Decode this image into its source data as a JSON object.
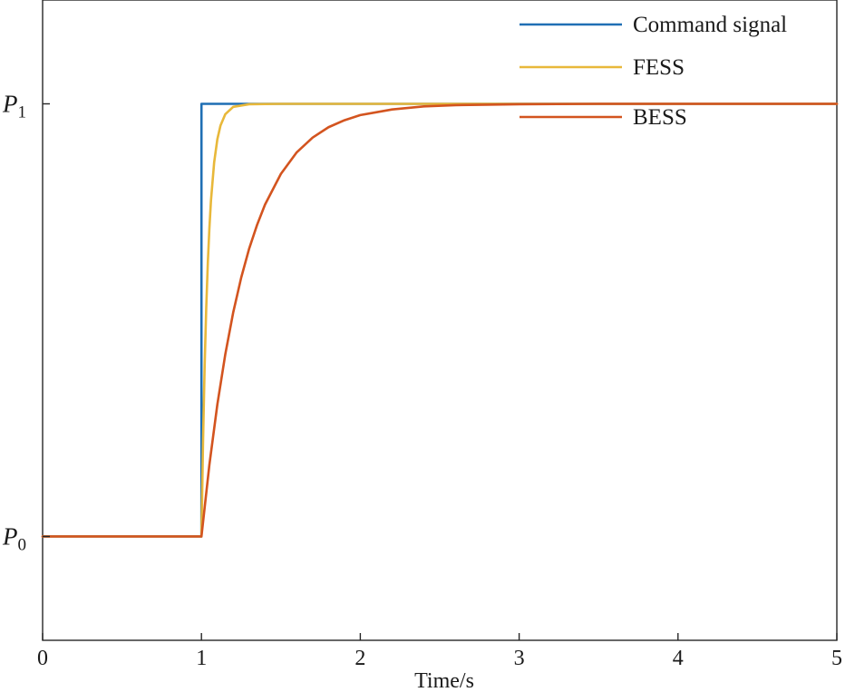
{
  "chart_data": {
    "type": "line",
    "title": "",
    "xlabel": "Time/s",
    "ylabel": "",
    "xlim": [
      0,
      5
    ],
    "ylim": [
      -0.24,
      1.24
    ],
    "grid": false,
    "legend_position": "top-right",
    "x_ticks": [
      {
        "value": 0,
        "label": "0"
      },
      {
        "value": 1,
        "label": "1"
      },
      {
        "value": 2,
        "label": "2"
      },
      {
        "value": 3,
        "label": "3"
      },
      {
        "value": 4,
        "label": "4"
      },
      {
        "value": 5,
        "label": "5"
      }
    ],
    "y_ticks": [
      {
        "value": 0,
        "label": "P",
        "sub": "0"
      },
      {
        "value": 1,
        "label": "P",
        "sub": "1"
      }
    ],
    "series": [
      {
        "name": "Command signal",
        "color": "#1f6fb4",
        "x": [
          0,
          1,
          1,
          5
        ],
        "y": [
          0,
          0,
          1,
          1
        ]
      },
      {
        "name": "FESS",
        "color": "#e8b83a",
        "x": [
          0,
          1,
          1.01,
          1.02,
          1.03,
          1.04,
          1.05,
          1.06,
          1.08,
          1.1,
          1.12,
          1.15,
          1.2,
          1.3,
          1.5,
          2,
          3,
          4,
          5
        ],
        "y": [
          0,
          0,
          0.221,
          0.393,
          0.528,
          0.632,
          0.713,
          0.777,
          0.865,
          0.918,
          0.95,
          0.976,
          0.993,
          0.999,
          1,
          1,
          1,
          1,
          1
        ]
      },
      {
        "name": "BESS",
        "color": "#d3541f",
        "x": [
          0,
          1,
          1.05,
          1.1,
          1.15,
          1.2,
          1.25,
          1.3,
          1.35,
          1.4,
          1.5,
          1.6,
          1.7,
          1.8,
          1.9,
          2.0,
          2.2,
          2.4,
          2.6,
          2.8,
          3.0,
          3.5,
          4,
          5
        ],
        "y": [
          0,
          0,
          0.166,
          0.305,
          0.421,
          0.518,
          0.598,
          0.665,
          0.72,
          0.767,
          0.838,
          0.888,
          0.922,
          0.946,
          0.962,
          0.974,
          0.987,
          0.994,
          0.997,
          0.998,
          0.999,
          1,
          1,
          1
        ]
      }
    ]
  }
}
